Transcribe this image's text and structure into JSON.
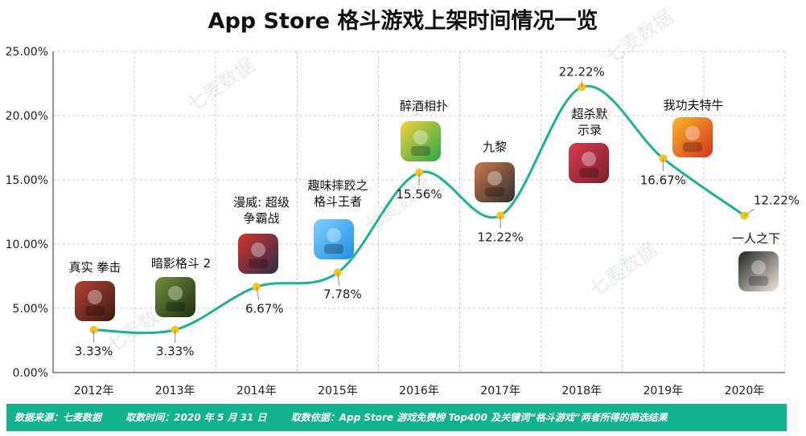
{
  "title": "App Store 格斗游戏上架时间情况一览",
  "watermark": "七麦数据",
  "colors": {
    "line": "#1ab394",
    "point": "#f5c518",
    "grid": "#cccccc",
    "footer": "#12b28c"
  },
  "chart_data": {
    "type": "line",
    "title": "App Store 格斗游戏上架时间情况一览",
    "categories": [
      "2012年",
      "2013年",
      "2014年",
      "2015年",
      "2016年",
      "2017年",
      "2018年",
      "2019年",
      "2020年"
    ],
    "y_ticks": [
      "0.00%",
      "5.00%",
      "10.00%",
      "15.00%",
      "20.00%",
      "25.00%"
    ],
    "ylim": [
      0,
      25
    ],
    "grid": true,
    "smooth": true,
    "series": [
      {
        "values": [
          3.33,
          3.33,
          6.67,
          7.78,
          15.56,
          12.22,
          22.22,
          16.67,
          12.22
        ],
        "labels": [
          "3.33%",
          "3.33%",
          "6.67%",
          "7.78%",
          "15.56%",
          "12.22%",
          "22.22%",
          "16.67%",
          "12.22%"
        ]
      }
    ],
    "annotations": [
      {
        "category": "2012年",
        "game": [
          "真实 拳击"
        ],
        "icon": "boxing-game-icon"
      },
      {
        "category": "2013年",
        "game": [
          "暗影格斗 2"
        ],
        "icon": "shadow-fighter-icon"
      },
      {
        "category": "2014年",
        "game": [
          "漫威: 超级",
          "争霸战"
        ],
        "icon": "marvel-icon"
      },
      {
        "category": "2015年",
        "game": [
          "趣味摔跤之",
          "格斗王者"
        ],
        "icon": "wrestling-icon"
      },
      {
        "category": "2016年",
        "game": [
          "醉酒相扑"
        ],
        "icon": "drunken-wrestlers-icon"
      },
      {
        "category": "2017年",
        "game": [
          "九黎"
        ],
        "icon": "jiuli-icon"
      },
      {
        "category": "2018年",
        "game": [
          "超杀默",
          "示录"
        ],
        "icon": "anime-girl-icon"
      },
      {
        "category": "2019年",
        "game": [
          "我功夫特牛"
        ],
        "icon": "kungfu-icon"
      },
      {
        "category": "2020年",
        "game": [
          "一人之下"
        ],
        "icon": "yirenzhixia-icon"
      }
    ]
  },
  "footer": {
    "source": "数据来源：七麦数据",
    "time": "取数时间：2020 年 5 月 31 日",
    "basis": "取数依据：App Store 游戏免费榜 Top400 及关键词“格斗游戏”两者所得的筛选结果"
  }
}
